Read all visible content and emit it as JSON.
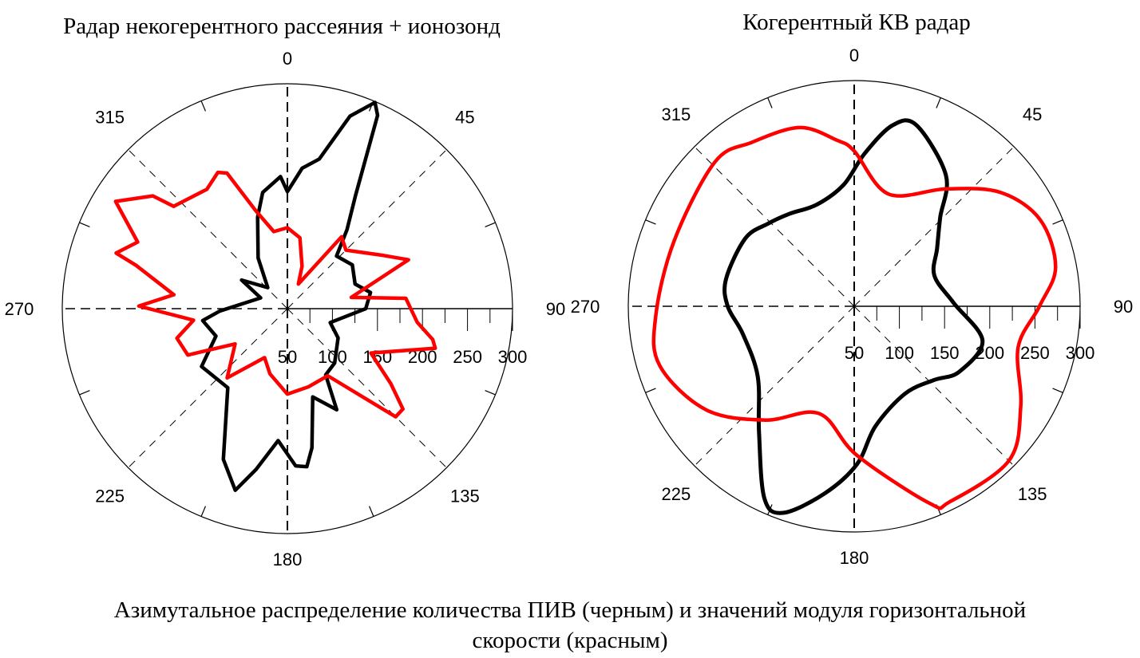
{
  "caption": {
    "line1": "Азимутальное распределение количества ПИВ (черным) и значений модуля горизонтальной",
    "line2": "скорости (красным)"
  },
  "chart_data": [
    {
      "type": "polar",
      "title": "Радар некогерентного рассеяния + ионозонд",
      "angle_ticks": [
        "0",
        "45",
        "90",
        "135",
        "180",
        "225",
        "270",
        "315"
      ],
      "radial_ticks": [
        "50",
        "100",
        "150",
        "200",
        "250",
        "300"
      ],
      "rlim": [
        50,
        300
      ],
      "direction": "clockwise, 0 at top",
      "grid": "dashed spokes every 45 degrees",
      "series": [
        {
          "color": "#000000",
          "angles": [
            0,
            6,
            12,
            18,
            23,
            25,
            31,
            37,
            43,
            56,
            70,
            79,
            90,
            108,
            120,
            139,
            150,
            154,
            164,
            170,
            173,
            177,
            184,
            191,
            196,
            203,
            217,
            236,
            249,
            262,
            268,
            292,
            302,
            317,
            330,
            342,
            348,
            357
          ],
          "values": [
            180,
            207,
            220,
            275,
            299,
            287,
            197,
            160,
            130,
            137,
            130,
            144,
            137,
            100,
            115,
            130,
            135,
            175,
            152,
            207,
            227,
            225,
            197,
            232,
            260,
            232,
            160,
            165,
            135,
            145,
            125,
            82,
            110,
            82,
            115,
            157,
            182,
            197
          ]
        },
        {
          "color": "#ff0000",
          "angles": [
            0,
            10,
            19,
            24,
            37,
            45,
            61,
            68,
            80,
            85,
            96,
            102,
            105,
            118,
            126,
            131,
            135,
            149,
            165,
            180,
            195,
            205,
            221,
            236,
            245,
            255,
            263,
            271,
            277,
            286,
            288,
            294,
            302,
            310,
            312,
            326,
            333,
            336,
            342,
            350
          ],
          "values": [
            140,
            130,
            100,
            80,
            150,
            142,
            172,
            195,
            122,
            182,
            195,
            215,
            220,
            155,
            192,
            220,
            220,
            137,
            140,
            145,
            125,
            110,
            152,
            120,
            172,
            177,
            155,
            215,
            177,
            225,
            250,
            232,
            275,
            245,
            220,
            210,
            220,
            215,
            165,
            137
          ]
        }
      ]
    },
    {
      "type": "polar",
      "title": "Когерентный КВ радар",
      "angle_ticks": [
        "0",
        "45",
        "90",
        "135",
        "180",
        "225",
        "270",
        "315"
      ],
      "radial_ticks": [
        "50",
        "100",
        "150",
        "200",
        "250",
        "300"
      ],
      "rlim": [
        50,
        300
      ],
      "direction": "clockwise, 0 at top",
      "grid": "dashed spokes every 45 degrees",
      "series": [
        {
          "color": "#000000",
          "angles": [
            4,
            12,
            19,
            35,
            44,
            55,
            69,
            88,
            105,
            122,
            133,
            150,
            170,
            179,
            189,
            199,
            205,
            217,
            234,
            256,
            270,
            282,
            302,
            314,
            325,
            340,
            355
          ],
          "values": [
            220,
            255,
            262,
            227,
            187,
            162,
            145,
            160,
            197,
            187,
            170,
            162,
            185,
            225,
            260,
            292,
            285,
            225,
            182,
            177,
            190,
            195,
            192,
            182,
            175,
            170,
            185
          ]
        },
        {
          "color": "#ff0000",
          "angles": [
            0,
            17,
            38,
            52,
            65,
            79,
            90,
            104,
            121,
            135,
            154,
            159,
            179,
            198,
            218,
            235,
            253,
            267,
            290,
            316,
            328,
            343,
            354
          ],
          "values": [
            222,
            180,
            215,
            255,
            277,
            277,
            255,
            237,
            265,
            292,
            291,
            284,
            215,
            175,
            210,
            250,
            275,
            270,
            262,
            272,
            264,
            257,
            235
          ]
        }
      ]
    }
  ]
}
